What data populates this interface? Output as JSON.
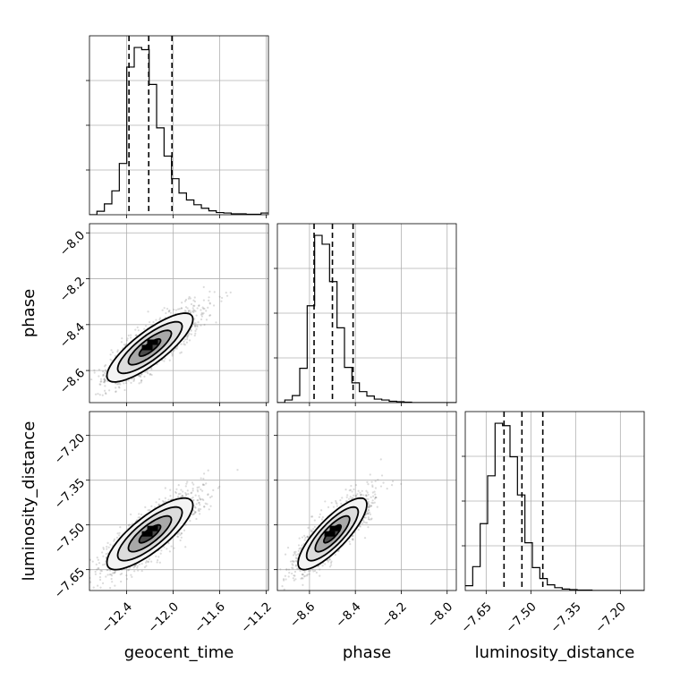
{
  "chart_data": {
    "type": "corner",
    "parameters": [
      {
        "name": "geocent_time",
        "range": [
          -12.72,
          -11.18
        ],
        "ticks": [
          -12.4,
          -12.0,
          -11.6,
          -11.2
        ],
        "tick_labels": [
          "−12.4",
          "−12.0",
          "−11.6",
          "−11.2"
        ],
        "quantiles": [
          -12.38,
          -12.21,
          -12.01
        ],
        "hist_bin_edges_start": -12.72,
        "hist_bin_width": 0.0642,
        "hist_counts": [
          0,
          8,
          25,
          55,
          118,
          340,
          385,
          380,
          300,
          200,
          135,
          83,
          50,
          34,
          23,
          15,
          9,
          5,
          4,
          2,
          2,
          1,
          1,
          4
        ]
      },
      {
        "name": "phase",
        "range": [
          -8.74,
          -7.96
        ],
        "ticks": [
          -8.6,
          -8.4,
          -8.2,
          -8.0
        ],
        "tick_labels": [
          "−8.6",
          "−8.4",
          "−8.2",
          "−8.0"
        ],
        "quantiles": [
          -8.58,
          -8.5,
          -8.41
        ],
        "hist_bin_edges_start": -8.74,
        "hist_bin_width": 0.0325,
        "hist_counts": [
          0,
          6,
          16,
          78,
          220,
          380,
          360,
          275,
          170,
          80,
          45,
          25,
          15,
          8,
          6,
          3,
          2,
          1,
          0,
          0,
          0,
          0,
          0,
          0
        ]
      },
      {
        "name": "luminosity_distance",
        "range": [
          -7.72,
          -7.12
        ],
        "ticks": [
          -7.65,
          -7.5,
          -7.35,
          -7.2
        ],
        "tick_labels": [
          "−7.65",
          "−7.50",
          "−7.35",
          "−7.20"
        ],
        "quantiles": [
          -7.59,
          -7.53,
          -7.46
        ],
        "hist_bin_edges_start": -7.72,
        "hist_bin_width": 0.025,
        "hist_counts": [
          10,
          50,
          140,
          240,
          350,
          345,
          280,
          200,
          100,
          48,
          25,
          12,
          6,
          3,
          2,
          1,
          1,
          0,
          0,
          0,
          0,
          0,
          0,
          0
        ]
      }
    ],
    "correlations": {
      "phase|geocent_time": 0.82,
      "luminosity_distance|geocent_time": 0.8,
      "luminosity_distance|phase": 0.82
    },
    "std": {
      "geocent_time": 0.185,
      "phase": 0.075,
      "luminosity_distance": 0.06
    },
    "mean": {
      "geocent_time": -12.2,
      "phase": -8.5,
      "luminosity_distance": -7.53
    },
    "contour_levels_sigma": [
      0.5,
      1.0,
      1.5,
      2.0
    ],
    "grid": true,
    "colors": {
      "points": "#7f7f7f",
      "contours": "#000000",
      "quantile_lines": "#000000"
    }
  }
}
